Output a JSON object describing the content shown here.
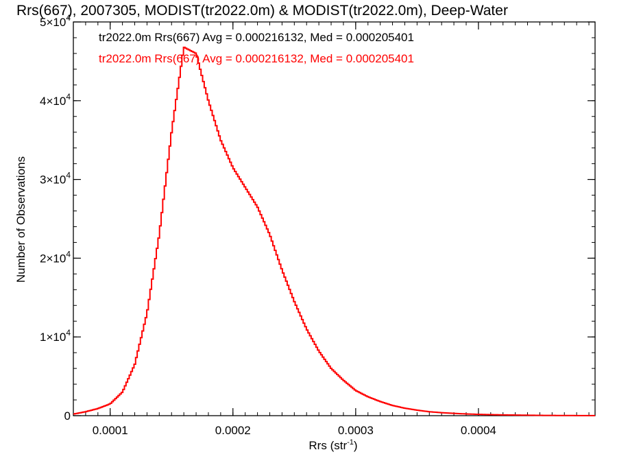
{
  "chart_data": {
    "type": "line",
    "title": "Rrs(667), 2007305, MODIST(tr2022.0m) & MODIST(tr2022.0m), Deep-Water",
    "xlabel": "Rrs (str",
    "xlabel_sup": "-1",
    "xlabel_end": ")",
    "ylabel": "Number of Observations",
    "xlim": [
      7e-05,
      0.000495
    ],
    "ylim": [
      0,
      50000
    ],
    "xticks": [
      {
        "value": 0.0001,
        "label": "0.0001"
      },
      {
        "value": 0.0002,
        "label": "0.0002"
      },
      {
        "value": 0.0003,
        "label": "0.0003"
      },
      {
        "value": 0.0004,
        "label": "0.0004"
      }
    ],
    "yticks": [
      {
        "value": 0,
        "label": "0",
        "exp": ""
      },
      {
        "value": 10000,
        "label": "1×10",
        "exp": "4"
      },
      {
        "value": 20000,
        "label": "2×10",
        "exp": "4"
      },
      {
        "value": 30000,
        "label": "3×10",
        "exp": "4"
      },
      {
        "value": 40000,
        "label": "4×10",
        "exp": "4"
      },
      {
        "value": 50000,
        "label": "5×10",
        "exp": "4"
      }
    ],
    "grid": false,
    "style": "histogram-step",
    "annotations": [
      {
        "text": "tr2022.0m Rrs(667) Avg = 0.000216132, Med = 0.000205401",
        "color": "#000000"
      },
      {
        "text": "tr2022.0m Rrs(667) Avg = 0.000216132, Med = 0.000205401",
        "color": "#ff0000"
      }
    ],
    "series": [
      {
        "color": "#ff0000",
        "x": [
          7e-05,
          8e-05,
          9e-05,
          0.0001,
          0.00011,
          0.00012,
          0.00013,
          0.00014,
          0.00015,
          0.00016,
          0.00017,
          0.00018,
          0.00019,
          0.0002,
          0.00021,
          0.00022,
          0.00023,
          0.00024,
          0.00025,
          0.00026,
          0.00027,
          0.00028,
          0.00029,
          0.0003,
          0.00031,
          0.00032,
          0.00033,
          0.00034,
          0.00035,
          0.00036,
          0.00037,
          0.00038,
          0.00039,
          0.0004,
          0.00041,
          0.00042,
          0.00043,
          0.00044,
          0.00045,
          0.00046,
          0.00047,
          0.00048,
          0.00049
        ],
        "y": [
          200,
          500,
          900,
          1500,
          3000,
          6500,
          13000,
          23000,
          36000,
          46800,
          46000,
          40000,
          35000,
          31500,
          29000,
          26500,
          23000,
          18500,
          14500,
          11000,
          8200,
          6000,
          4500,
          3200,
          2400,
          1800,
          1300,
          950,
          700,
          500,
          380,
          290,
          220,
          170,
          130,
          100,
          80,
          60,
          40,
          30,
          20,
          15,
          10
        ]
      }
    ]
  }
}
